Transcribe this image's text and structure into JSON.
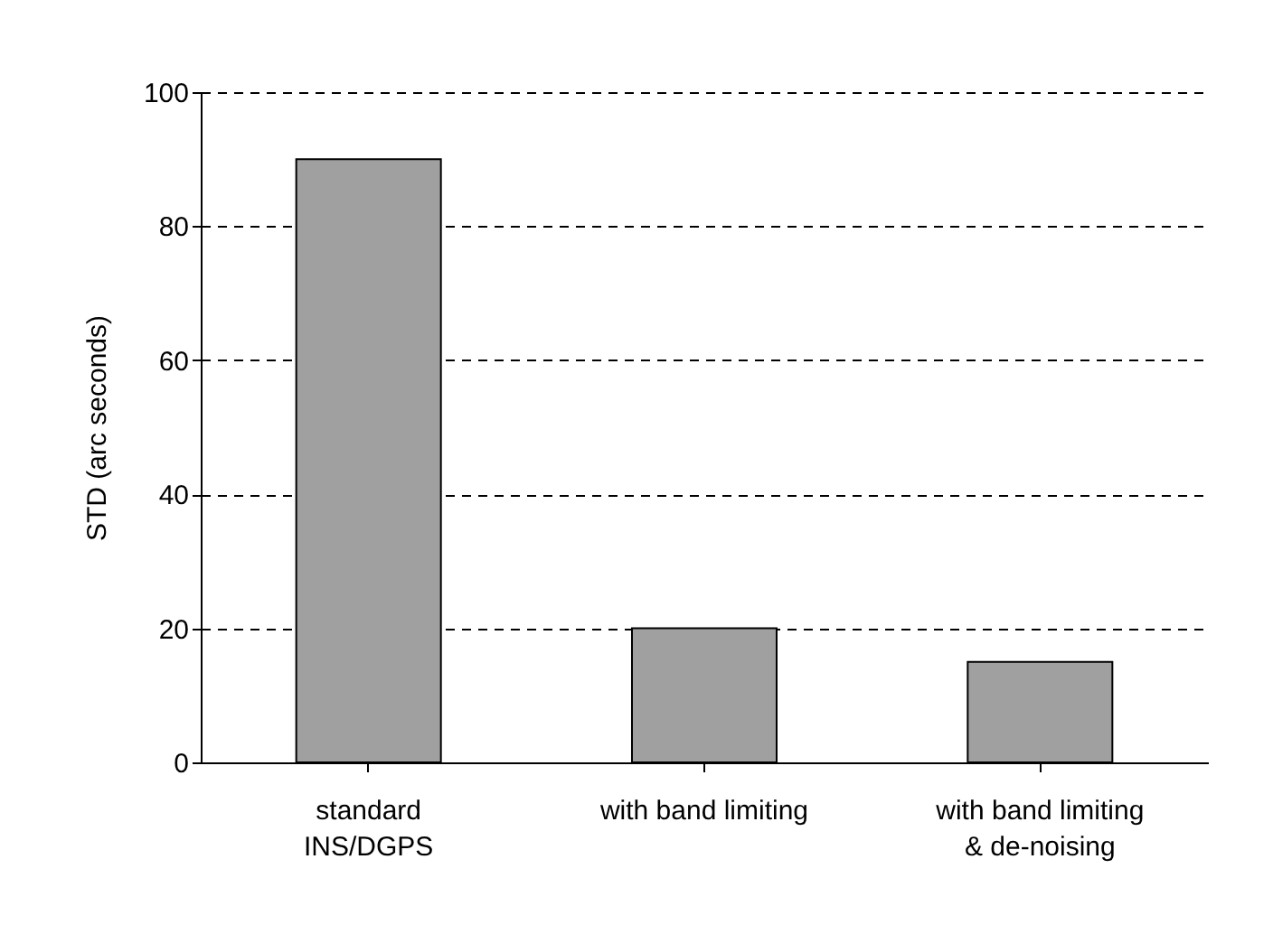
{
  "chart_data": {
    "type": "bar",
    "ylabel": "STD (arc seconds)",
    "categories": [
      "standard\nINS/DGPS",
      "with band limiting",
      "with band limiting\n& de-noising"
    ],
    "values": [
      90,
      20,
      15
    ],
    "color": "#a0a0a0",
    "ylim": [
      0,
      100
    ],
    "yticks": [
      0,
      20,
      40,
      60,
      80,
      100
    ],
    "grid": "y"
  }
}
